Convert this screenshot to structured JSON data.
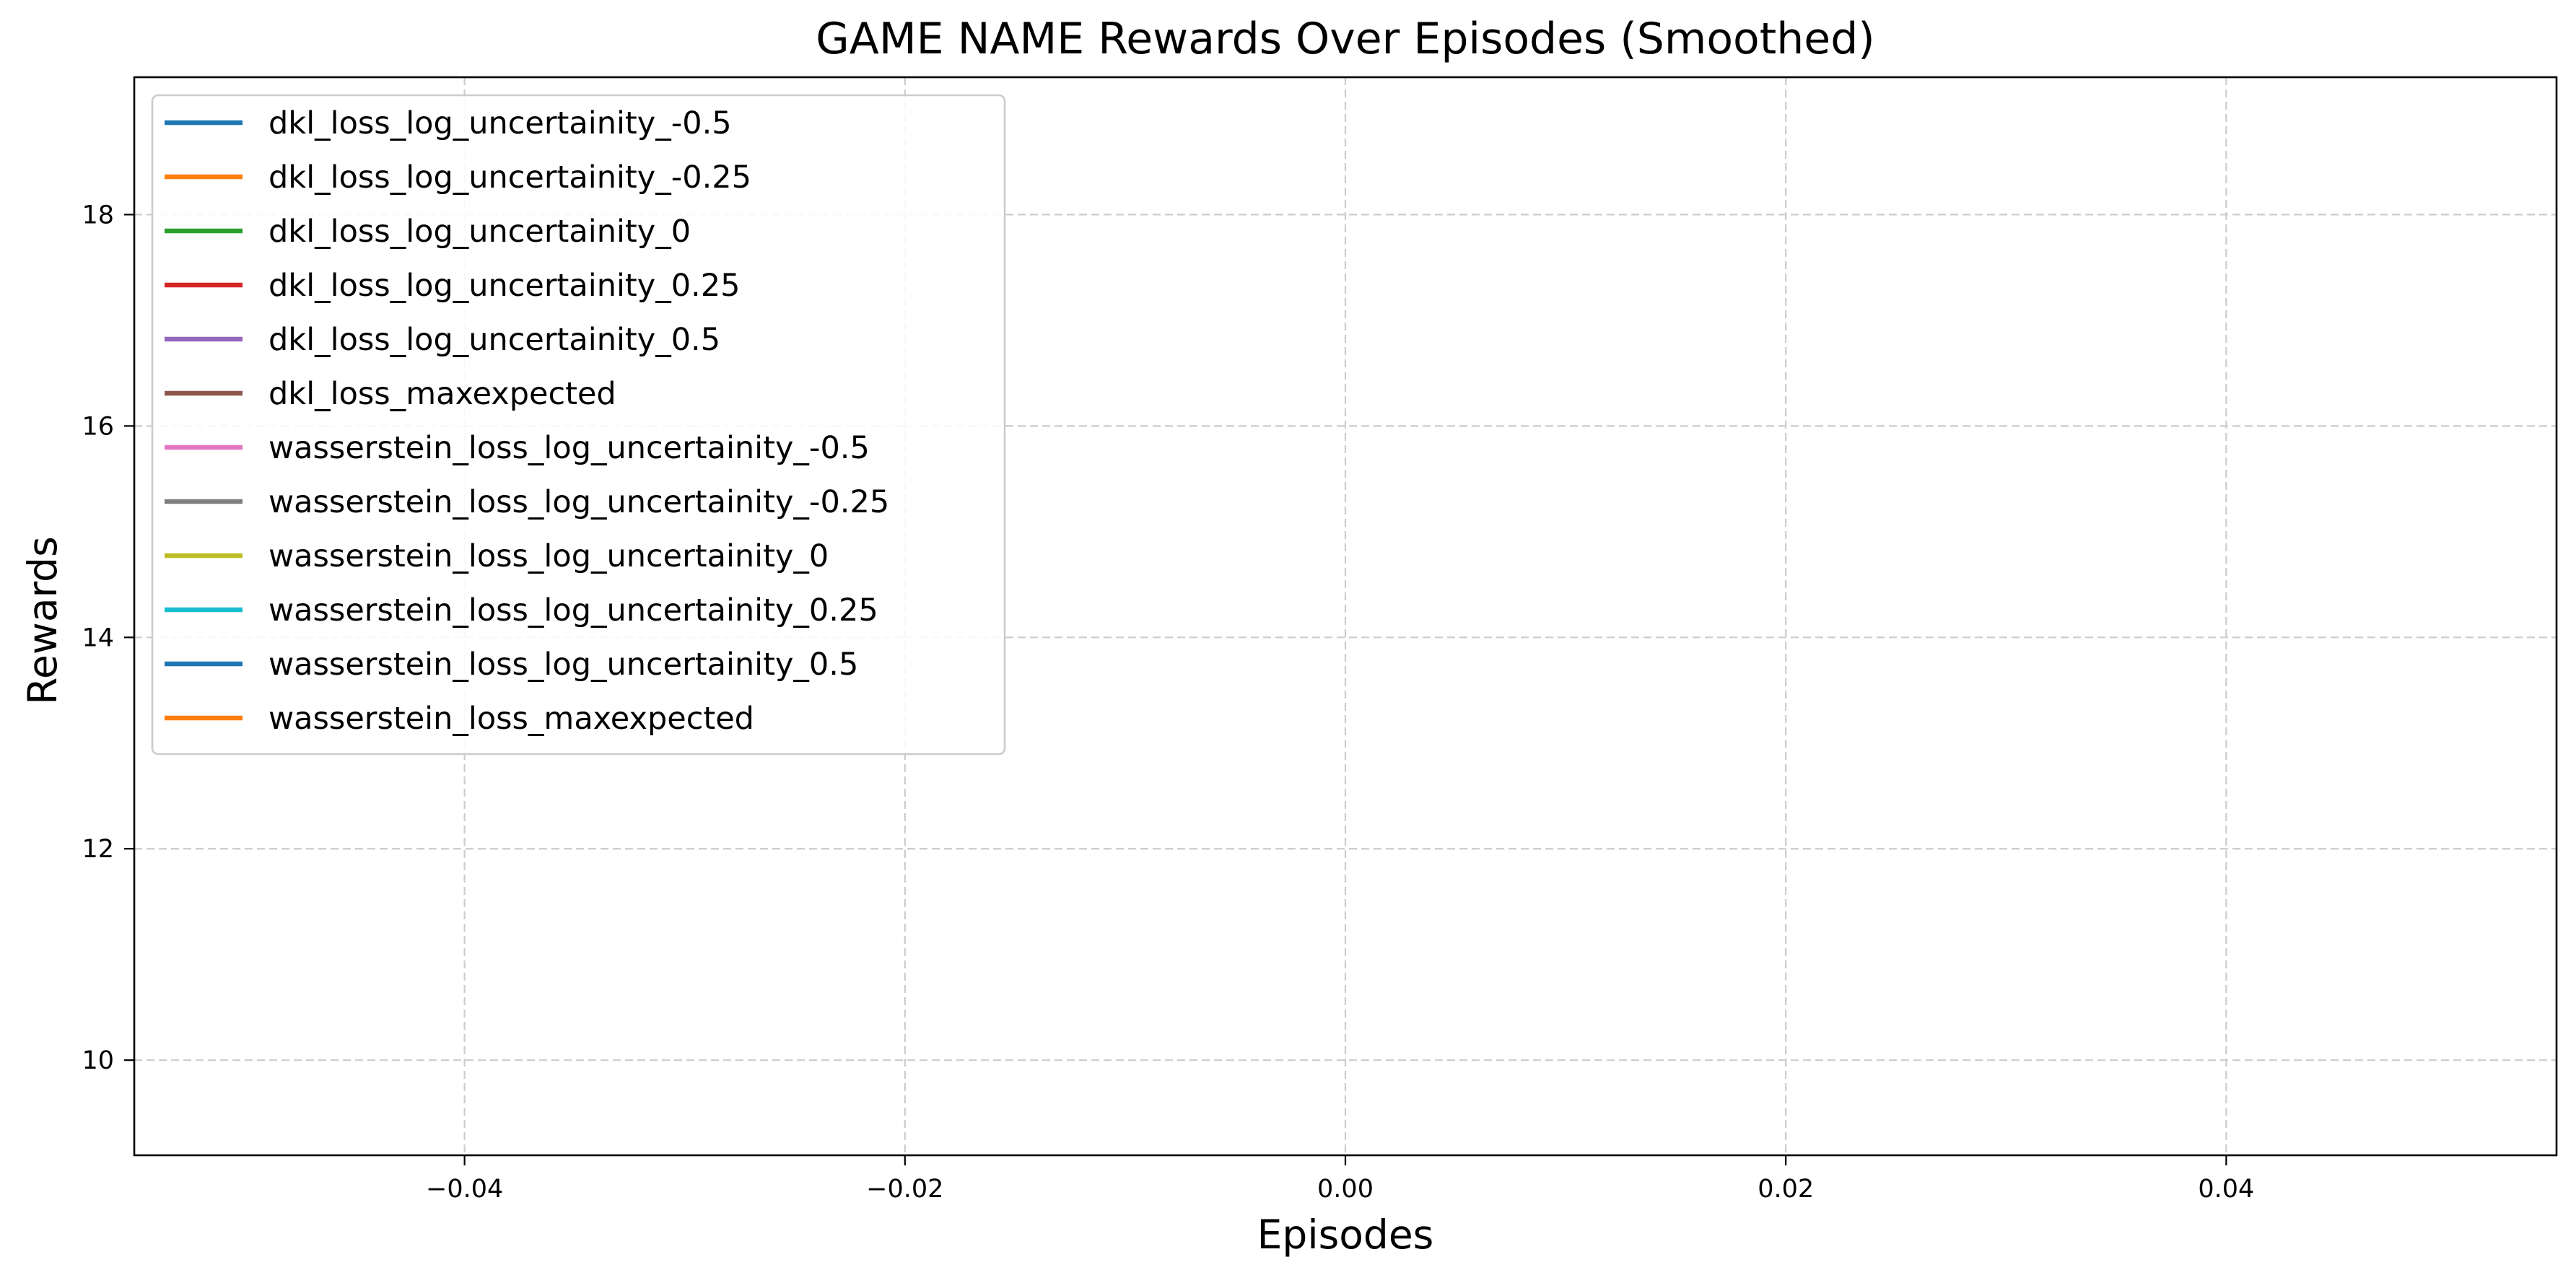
{
  "chart_data": {
    "type": "line",
    "title": "GAME NAME Rewards Over Episodes (Smoothed)",
    "xlabel": "Episodes",
    "ylabel": "Rewards",
    "xlim": [
      -0.055,
      0.055
    ],
    "ylim": [
      9.1,
      19.3
    ],
    "x_ticks": [
      -0.04,
      -0.02,
      0.0,
      0.02,
      0.04
    ],
    "x_tick_labels": [
      "−0.04",
      "−0.02",
      "0.00",
      "0.02",
      "0.04"
    ],
    "y_ticks": [
      10,
      12,
      14,
      16,
      18
    ],
    "y_tick_labels": [
      "10",
      "12",
      "14",
      "16",
      "18"
    ],
    "grid": true,
    "legend_position": "top-left",
    "series": [
      {
        "name": "dkl_loss_log_uncertainity_-0.5",
        "color": "#1f77b4",
        "x": [],
        "y": []
      },
      {
        "name": "dkl_loss_log_uncertainity_-0.25",
        "color": "#ff7f0e",
        "x": [],
        "y": []
      },
      {
        "name": "dkl_loss_log_uncertainity_0",
        "color": "#2ca02c",
        "x": [],
        "y": []
      },
      {
        "name": "dkl_loss_log_uncertainity_0.25",
        "color": "#d62728",
        "x": [],
        "y": []
      },
      {
        "name": "dkl_loss_log_uncertainity_0.5",
        "color": "#9467bd",
        "x": [],
        "y": []
      },
      {
        "name": "dkl_loss_maxexpected",
        "color": "#8c564b",
        "x": [],
        "y": []
      },
      {
        "name": "wasserstein_loss_log_uncertainity_-0.5",
        "color": "#e377c2",
        "x": [],
        "y": []
      },
      {
        "name": "wasserstein_loss_log_uncertainity_-0.25",
        "color": "#7f7f7f",
        "x": [],
        "y": []
      },
      {
        "name": "wasserstein_loss_log_uncertainity_0",
        "color": "#bcbd22",
        "x": [],
        "y": []
      },
      {
        "name": "wasserstein_loss_log_uncertainity_0.25",
        "color": "#17becf",
        "x": [],
        "y": []
      },
      {
        "name": "wasserstein_loss_log_uncertainity_0.5",
        "color": "#1f77b4",
        "x": [],
        "y": []
      },
      {
        "name": "wasserstein_loss_maxexpected",
        "color": "#ff7f0e",
        "x": [],
        "y": []
      }
    ]
  }
}
